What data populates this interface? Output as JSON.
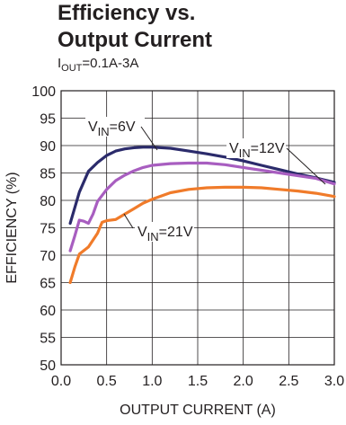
{
  "chart_data": {
    "type": "line",
    "title_line1": "Efficiency vs.",
    "title_line2": "Output Current",
    "subtitle_main": "I",
    "subtitle_sub": "OUT",
    "subtitle_rest": "=0.1A-3A",
    "xlabel": "OUTPUT CURRENT (A)",
    "ylabel": "EFFICIENCY (%)",
    "xlim": [
      0,
      3
    ],
    "ylim": [
      50,
      100
    ],
    "x_ticks": [
      "0.0",
      "0.5",
      "1.0",
      "1.5",
      "2.0",
      "2.5",
      "3.0"
    ],
    "y_ticks": [
      "50",
      "55",
      "60",
      "65",
      "70",
      "75",
      "80",
      "85",
      "90",
      "95",
      "100"
    ],
    "grid": true,
    "series": [
      {
        "name": "VIN=6V",
        "label_main": "V",
        "label_sub": "IN",
        "label_rest": "=6V",
        "color": "#2b2b6b",
        "x": [
          0.1,
          0.2,
          0.3,
          0.4,
          0.5,
          0.6,
          0.7,
          0.8,
          0.9,
          1.0,
          1.2,
          1.4,
          1.6,
          1.8,
          2.0,
          2.2,
          2.4,
          2.6,
          2.8,
          3.0
        ],
        "y": [
          75.8,
          81.5,
          85.3,
          86.9,
          88.2,
          89.0,
          89.4,
          89.6,
          89.7,
          89.7,
          89.5,
          89.0,
          88.5,
          87.9,
          87.2,
          86.4,
          85.6,
          84.8,
          84.1,
          83.3
        ]
      },
      {
        "name": "VIN=12V",
        "label_main": "V",
        "label_sub": "IN",
        "label_rest": "=12V",
        "color": "#a85ec0",
        "x": [
          0.1,
          0.15,
          0.2,
          0.25,
          0.3,
          0.35,
          0.4,
          0.5,
          0.6,
          0.7,
          0.8,
          0.9,
          1.0,
          1.2,
          1.4,
          1.6,
          1.8,
          2.0,
          2.2,
          2.4,
          2.6,
          2.8,
          3.0
        ],
        "y": [
          70.8,
          73.5,
          76.4,
          76.2,
          75.8,
          77.5,
          79.8,
          82.0,
          83.6,
          84.6,
          85.4,
          86.0,
          86.4,
          86.7,
          86.8,
          86.8,
          86.5,
          86.0,
          85.5,
          85.0,
          84.5,
          84.0,
          83.0
        ]
      },
      {
        "name": "VIN=21V",
        "label_main": "V",
        "label_sub": "IN",
        "label_rest": "=21V",
        "color": "#f07b2a",
        "x": [
          0.1,
          0.15,
          0.2,
          0.3,
          0.4,
          0.45,
          0.5,
          0.6,
          0.7,
          0.8,
          0.9,
          1.0,
          1.2,
          1.4,
          1.6,
          1.8,
          2.0,
          2.2,
          2.4,
          2.6,
          2.8,
          3.0
        ],
        "y": [
          65.0,
          67.8,
          70.2,
          71.5,
          74.0,
          76.0,
          76.3,
          76.5,
          77.5,
          78.5,
          79.5,
          80.2,
          81.4,
          82.0,
          82.3,
          82.4,
          82.4,
          82.3,
          82.0,
          81.7,
          81.3,
          80.7
        ]
      }
    ]
  }
}
